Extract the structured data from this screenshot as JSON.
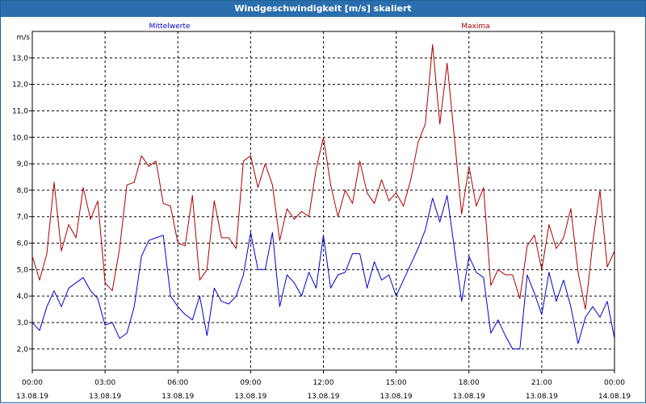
{
  "window": {
    "title": "Windgeschwindigkeit [m/s] skaliert"
  },
  "chart_data": {
    "type": "line",
    "title": "Windgeschwindigkeit [m/s] skaliert",
    "ylabel": "m/s",
    "xlabel": "",
    "ylim": [
      1.2,
      14.0
    ],
    "yticks": [
      "2,0",
      "3,0",
      "4,0",
      "5,0",
      "6,0",
      "7,0",
      "8,0",
      "9,0",
      "10,0",
      "11,0",
      "12,0",
      "13,0"
    ],
    "ytick_values": [
      2,
      3,
      4,
      5,
      6,
      7,
      8,
      9,
      10,
      11,
      12,
      13
    ],
    "xlim": [
      0,
      24
    ],
    "xticks": [
      {
        "time": "00:00",
        "date": "13.08.19",
        "hour": 0
      },
      {
        "time": "03:00",
        "date": "13.08.19",
        "hour": 3
      },
      {
        "time": "06:00",
        "date": "13.08.19",
        "hour": 6
      },
      {
        "time": "09:00",
        "date": "13.08.19",
        "hour": 9
      },
      {
        "time": "12:00",
        "date": "13.08.19",
        "hour": 12
      },
      {
        "time": "15:00",
        "date": "13.08.19",
        "hour": 15
      },
      {
        "time": "18:00",
        "date": "13.08.19",
        "hour": 18
      },
      {
        "time": "21:00",
        "date": "13.08.19",
        "hour": 21
      },
      {
        "time": "00:00",
        "date": "14.08.19",
        "hour": 24
      }
    ],
    "grid": true,
    "series": [
      {
        "name": "Mittelwerte",
        "color": "#0000cc",
        "x": [
          0,
          0.3,
          0.6,
          0.9,
          1.2,
          1.5,
          1.8,
          2.1,
          2.4,
          2.7,
          3.0,
          3.3,
          3.6,
          3.9,
          4.2,
          4.5,
          4.8,
          5.1,
          5.4,
          5.7,
          6.0,
          6.3,
          6.6,
          6.9,
          7.2,
          7.5,
          7.8,
          8.1,
          8.4,
          8.7,
          9.0,
          9.3,
          9.6,
          9.9,
          10.2,
          10.5,
          10.8,
          11.1,
          11.4,
          11.7,
          12.0,
          12.3,
          12.6,
          12.9,
          13.2,
          13.5,
          13.8,
          14.1,
          14.4,
          14.7,
          15.0,
          15.3,
          15.6,
          15.9,
          16.2,
          16.5,
          16.8,
          17.1,
          17.4,
          17.7,
          18.0,
          18.3,
          18.6,
          18.9,
          19.2,
          19.5,
          19.8,
          20.1,
          20.4,
          20.7,
          21.0,
          21.3,
          21.6,
          21.9,
          22.2,
          22.5,
          22.8,
          23.1,
          23.4,
          23.7,
          24.0
        ],
        "values": [
          3.0,
          2.7,
          3.6,
          4.2,
          3.6,
          4.3,
          4.5,
          4.7,
          4.2,
          3.9,
          2.9,
          3.0,
          2.4,
          2.6,
          3.6,
          5.5,
          6.1,
          6.2,
          6.3,
          4.0,
          3.6,
          3.3,
          3.1,
          4.0,
          2.5,
          4.3,
          3.8,
          3.7,
          4.0,
          4.8,
          6.4,
          5.0,
          5.0,
          6.4,
          3.6,
          4.8,
          4.5,
          4.0,
          4.9,
          4.3,
          6.3,
          4.3,
          4.8,
          4.9,
          5.6,
          5.6,
          4.3,
          5.3,
          4.6,
          4.8,
          4.0,
          4.6,
          5.2,
          5.8,
          6.5,
          7.7,
          6.8,
          7.8,
          5.8,
          3.8,
          5.5,
          4.9,
          4.7,
          2.6,
          3.1,
          2.5,
          2.0,
          2.0,
          4.8,
          4.1,
          3.3,
          4.9,
          3.8,
          4.6,
          3.6,
          2.2,
          3.2,
          3.6,
          3.2,
          3.8,
          2.4
        ]
      },
      {
        "name": "Maxima",
        "color": "#aa0000",
        "x": [
          0,
          0.3,
          0.6,
          0.9,
          1.2,
          1.5,
          1.8,
          2.1,
          2.4,
          2.7,
          3.0,
          3.3,
          3.6,
          3.9,
          4.2,
          4.5,
          4.8,
          5.1,
          5.4,
          5.7,
          6.0,
          6.3,
          6.6,
          6.9,
          7.2,
          7.5,
          7.8,
          8.1,
          8.4,
          8.7,
          9.0,
          9.3,
          9.6,
          9.9,
          10.2,
          10.5,
          10.8,
          11.1,
          11.4,
          11.7,
          12.0,
          12.3,
          12.6,
          12.9,
          13.2,
          13.5,
          13.8,
          14.1,
          14.4,
          14.7,
          15.0,
          15.3,
          15.6,
          15.9,
          16.2,
          16.5,
          16.8,
          17.1,
          17.4,
          17.7,
          18.0,
          18.3,
          18.6,
          18.9,
          19.2,
          19.5,
          19.8,
          20.1,
          20.4,
          20.7,
          21.0,
          21.3,
          21.6,
          21.9,
          22.2,
          22.5,
          22.8,
          23.1,
          23.4,
          23.7,
          24.0
        ],
        "values": [
          5.5,
          4.6,
          5.6,
          8.3,
          5.7,
          6.7,
          6.2,
          8.1,
          6.9,
          7.6,
          4.5,
          4.2,
          5.8,
          8.2,
          8.3,
          9.3,
          8.9,
          9.1,
          7.5,
          7.4,
          6.0,
          5.9,
          7.8,
          4.6,
          5.0,
          7.6,
          6.2,
          6.2,
          5.8,
          9.1,
          9.3,
          8.1,
          9.0,
          8.2,
          6.1,
          7.3,
          6.9,
          7.2,
          7.0,
          8.8,
          10.0,
          8.2,
          7.0,
          8.0,
          7.5,
          9.1,
          7.9,
          7.5,
          8.4,
          7.6,
          7.9,
          7.4,
          8.4,
          9.8,
          10.5,
          13.5,
          10.5,
          12.8,
          10.0,
          7.1,
          8.9,
          7.4,
          8.1,
          4.4,
          5.0,
          4.8,
          4.8,
          3.9,
          5.9,
          6.3,
          5.0,
          6.7,
          5.8,
          6.2,
          7.3,
          4.9,
          3.5,
          6.0,
          8.0,
          5.1,
          5.7
        ]
      }
    ]
  }
}
